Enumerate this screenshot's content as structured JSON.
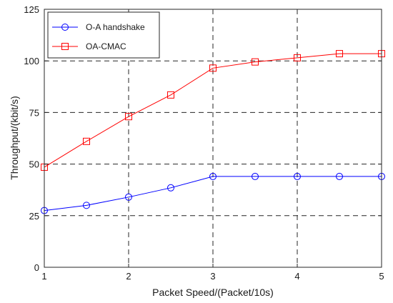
{
  "chart_data": {
    "type": "line",
    "xlabel": "Packet Speed/(Packet/10s)",
    "ylabel": "Throughput/(kbit/s)",
    "xlim": [
      1,
      5
    ],
    "ylim": [
      0,
      125
    ],
    "x_ticks": [
      1,
      2,
      3,
      4,
      5
    ],
    "y_ticks": [
      0,
      25,
      50,
      75,
      100,
      125
    ],
    "x_tick_labels": [
      "1",
      "2",
      "3",
      "4",
      "5"
    ],
    "y_tick_labels": [
      "0",
      "25",
      "50",
      "75",
      "100",
      "125"
    ],
    "grid": true,
    "grid_style": "dashed",
    "legend_position": "top-left",
    "x": [
      1,
      1.5,
      2,
      2.5,
      3,
      3.5,
      4,
      4.5,
      5
    ],
    "series": [
      {
        "name": "O-A handshake",
        "color": "#0000ff",
        "marker": "circle",
        "values": [
          27.5,
          30,
          34,
          38.5,
          44,
          44,
          44,
          44,
          44
        ]
      },
      {
        "name": "OA-CMAC",
        "color": "#ff0000",
        "marker": "square",
        "values": [
          48.5,
          61,
          73,
          83.5,
          96.5,
          99.5,
          101.5,
          103.5,
          103.5
        ]
      }
    ]
  }
}
